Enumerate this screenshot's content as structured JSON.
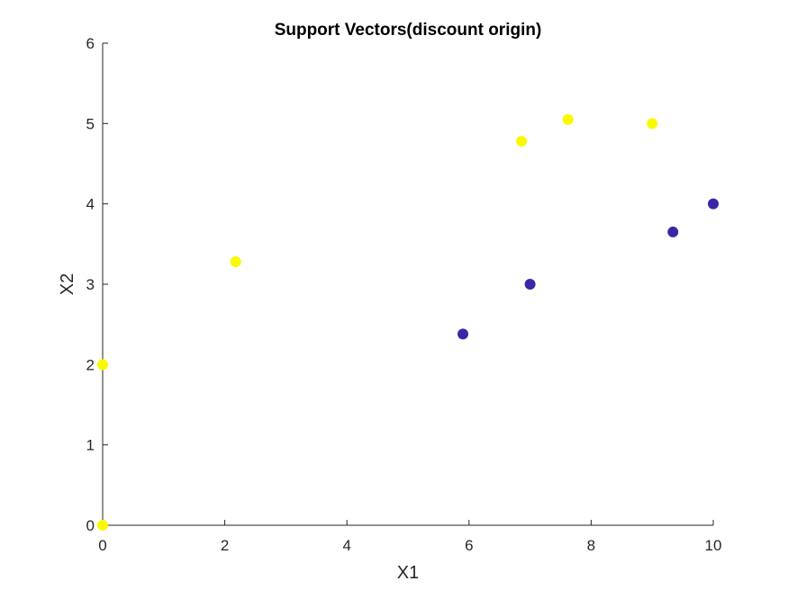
{
  "chart_data": {
    "type": "scatter",
    "title": "Support Vectors(discount origin)",
    "xlabel": "X1",
    "ylabel": "X2",
    "xlim": [
      0,
      10
    ],
    "ylim": [
      0,
      6
    ],
    "xticks": [
      0,
      2,
      4,
      6,
      8,
      10
    ],
    "yticks": [
      0,
      1,
      2,
      3,
      4,
      5,
      6
    ],
    "grid": false,
    "series": [
      {
        "color": "#F9F900",
        "points": [
          {
            "x": 0,
            "y": 0
          },
          {
            "x": 0,
            "y": 2
          },
          {
            "x": 2.18,
            "y": 3.28
          },
          {
            "x": 6.86,
            "y": 4.78
          },
          {
            "x": 7.62,
            "y": 5.05
          },
          {
            "x": 9,
            "y": 5
          }
        ]
      },
      {
        "color": "#3A27A6",
        "points": [
          {
            "x": 5.9,
            "y": 2.38
          },
          {
            "x": 7,
            "y": 3
          },
          {
            "x": 9.34,
            "y": 3.65
          },
          {
            "x": 10,
            "y": 4
          }
        ]
      }
    ]
  }
}
